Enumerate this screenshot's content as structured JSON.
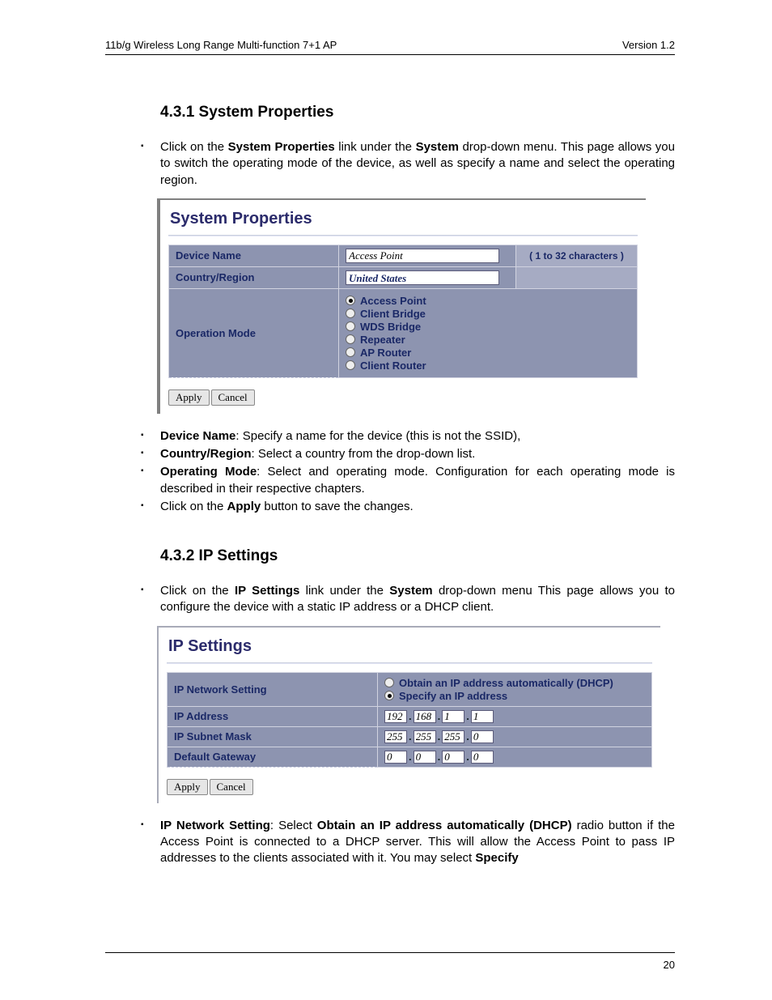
{
  "header": {
    "left": "11b/g Wireless Long Range Multi-function 7+1 AP",
    "right": "Version 1.2"
  },
  "section1": {
    "heading": "4.3.1  System Properties",
    "intro_pre": "Click on the ",
    "intro_b1": "System Properties",
    "intro_mid": " link under the ",
    "intro_b2": "System",
    "intro_post": " drop-down menu. This page allows you to switch the operating mode of the device, as well as specify a name and select the operating region.",
    "bullets": [
      {
        "t": "Device Name",
        "rest": ": Specify a name for the device (this is not the SSID),"
      },
      {
        "t": "Country/Region",
        "rest": ": Select a country from the drop-down list."
      },
      {
        "t": "Operating Mode",
        "rest": ": Select and operating mode. Configuration for each operating mode is described in their respective chapters."
      },
      {
        "t": "",
        "rest_pre": "Click on the ",
        "rest_b": "Apply",
        "rest_post": " button to save the changes."
      }
    ]
  },
  "sys_panel": {
    "title": "System Properties",
    "rows": {
      "device_name_label": "Device Name",
      "device_name_value": "Access Point",
      "device_name_hint": "( 1 to 32 characters )",
      "country_label": "Country/Region",
      "country_value": "United States",
      "opmode_label": "Operation Mode",
      "modes": [
        "Access Point",
        "Client Bridge",
        "WDS Bridge",
        "Repeater",
        "AP Router",
        "Client Router"
      ],
      "selected_mode_index": 0
    },
    "apply": "Apply",
    "cancel": "Cancel"
  },
  "section2": {
    "heading": "4.3.2  IP Settings",
    "intro_pre": "Click on the ",
    "intro_b1": "IP Settings",
    "intro_mid": " link under the ",
    "intro_b2": "System",
    "intro_post": " drop-down menu This page allows you to configure the device with a static IP address or a DHCP client."
  },
  "ip_panel": {
    "title": "IP Settings",
    "labels": {
      "net": "IP Network Setting",
      "addr": "IP Address",
      "mask": "IP Subnet Mask",
      "gw": "Default Gateway"
    },
    "opts": {
      "dhcp": "Obtain an IP address automatically (DHCP)",
      "static": "Specify an IP address",
      "selected": "static"
    },
    "ip": [
      "192",
      "168",
      "1",
      "1"
    ],
    "mask": [
      "255",
      "255",
      "255",
      "0"
    ],
    "gw": [
      "0",
      "0",
      "0",
      "0"
    ],
    "apply": "Apply",
    "cancel": "Cancel"
  },
  "section3": {
    "b1": "IP Network Setting",
    "mid1": ": Select ",
    "b2": "Obtain an IP address automatically (DHCP)",
    "mid2": " radio button if the Access Point is connected to a DHCP server. This will allow the Access Point to pass IP addresses to the clients associated with it. You may select ",
    "b3": "Specify"
  },
  "pagenum": "20",
  "colors": {
    "panel_cell": "#8d94b0",
    "panel_text": "#1a2866"
  }
}
